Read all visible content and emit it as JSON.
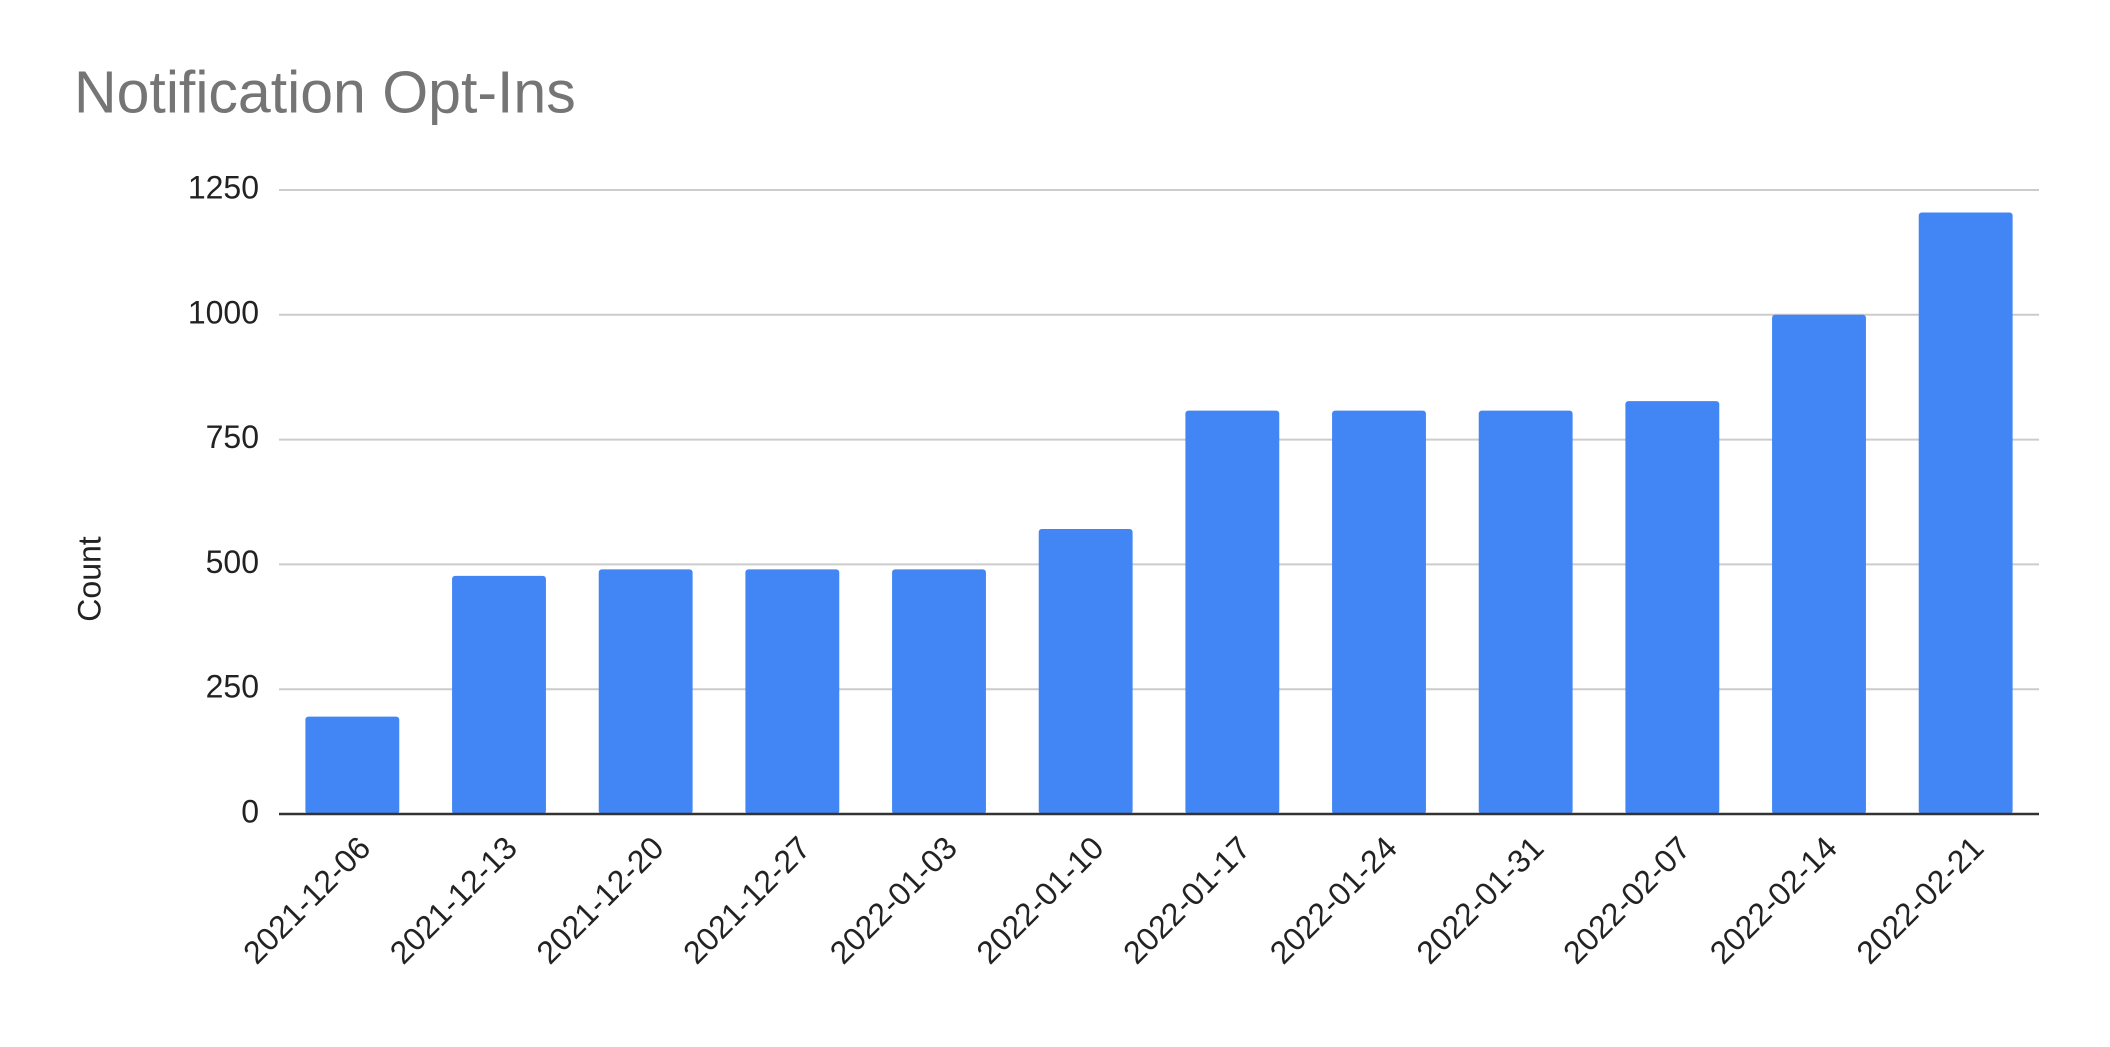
{
  "chart_data": {
    "type": "bar",
    "title": "Notification Opt-Ins",
    "y_label": "Count",
    "categories": [
      "2021-12-06",
      "2021-12-13",
      "2021-12-20",
      "2021-12-27",
      "2022-01-03",
      "2022-01-10",
      "2022-01-17",
      "2022-01-24",
      "2022-01-31",
      "2022-02-07",
      "2022-02-14",
      "2022-02-21"
    ],
    "values": [
      195,
      477,
      490,
      490,
      490,
      571,
      808,
      808,
      808,
      827,
      1000,
      1205
    ],
    "color": "#4285f4",
    "ylim": [
      0,
      1250
    ],
    "yticks": [
      0,
      250,
      500,
      750,
      1000,
      1250
    ],
    "grid": true
  }
}
